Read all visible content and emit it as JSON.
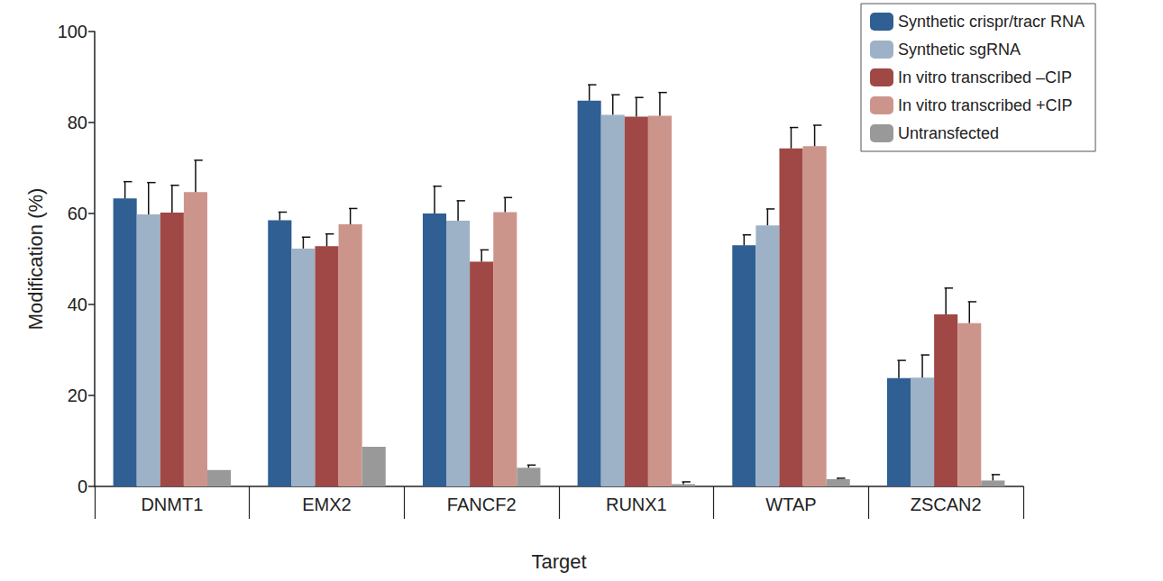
{
  "chart_data": {
    "type": "bar",
    "x_label": "Target",
    "y_label": "Modification (%)",
    "categories": [
      "DNMT1",
      "EMX2",
      "FANCF2",
      "RUNX1",
      "WTAP",
      "ZSCAN2"
    ],
    "series": [
      {
        "name": "Synthetic crispr/tracr RNA",
        "color": "#2f5f93",
        "values": [
          63.3,
          58.5,
          60.0,
          84.8,
          53.0,
          23.8
        ],
        "errors": [
          3.7,
          1.8,
          6.0,
          3.5,
          2.3,
          3.9
        ]
      },
      {
        "name": "Synthetic sgRNA",
        "color": "#9db2c6",
        "values": [
          59.8,
          52.3,
          58.4,
          81.7,
          57.4,
          23.9
        ],
        "errors": [
          7.0,
          2.5,
          4.4,
          4.4,
          3.6,
          5.0
        ]
      },
      {
        "name": "In vitro transcribed –CIP",
        "color": "#a04845",
        "values": [
          60.2,
          52.8,
          49.4,
          81.3,
          74.3,
          37.8
        ],
        "errors": [
          6.0,
          2.7,
          2.6,
          4.2,
          4.6,
          5.8
        ]
      },
      {
        "name": "In vitro transcribed +CIP",
        "color": "#cc958c",
        "values": [
          64.7,
          57.6,
          60.3,
          81.5,
          74.8,
          35.9
        ],
        "errors": [
          7.0,
          3.5,
          3.2,
          5.1,
          4.6,
          4.7
        ]
      },
      {
        "name": "Untransfected",
        "color": "#999999",
        "values": [
          3.6,
          8.7,
          4.1,
          0.5,
          1.6,
          1.3
        ],
        "errors": [
          0,
          0,
          0.6,
          0.5,
          0.2,
          1.3
        ]
      }
    ],
    "ylim": [
      0,
      100
    ],
    "yticks": [
      0,
      20,
      40,
      60,
      80,
      100
    ],
    "grid": false,
    "legend": "upper right"
  }
}
